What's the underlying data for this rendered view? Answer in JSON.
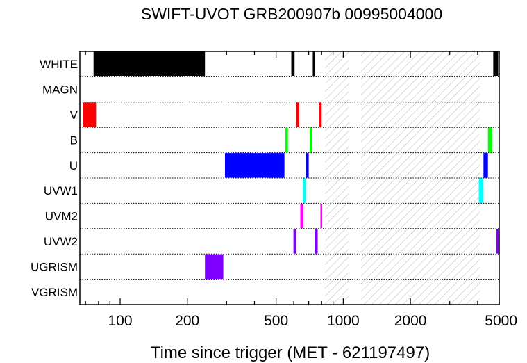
{
  "chart_data": {
    "type": "timeline",
    "title": "SWIFT-UVOT GRB200907b 00995004000",
    "xlabel": "Time since trigger (MET - 621197497)",
    "xscale": "log",
    "xlim": [
      66,
      5000
    ],
    "xticks": [
      {
        "value": 100,
        "label": "100"
      },
      {
        "value": 200,
        "label": "200"
      },
      {
        "value": 500,
        "label": "500"
      },
      {
        "value": 1000,
        "label": "1000"
      },
      {
        "value": 2000,
        "label": "2000"
      },
      {
        "value": 5000,
        "label": "5000"
      }
    ],
    "rows": [
      "WHITE",
      "MAGN",
      "V",
      "B",
      "U",
      "UVW1",
      "UVM2",
      "UVW2",
      "UGRISM",
      "VGRISM"
    ],
    "hatched_intervals": [
      [
        830,
        1060
      ],
      [
        1200,
        4100
      ]
    ],
    "exposures": [
      {
        "filter": "WHITE",
        "start": 76,
        "end": 240,
        "color": "#000000"
      },
      {
        "filter": "WHITE",
        "start": 585,
        "end": 605,
        "color": "#000000"
      },
      {
        "filter": "WHITE",
        "start": 730,
        "end": 745,
        "color": "#000000"
      },
      {
        "filter": "WHITE",
        "start": 4700,
        "end": 4950,
        "color": "#000000"
      },
      {
        "filter": "V",
        "start": 68,
        "end": 78,
        "color": "#ff0000"
      },
      {
        "filter": "V",
        "start": 615,
        "end": 635,
        "color": "#ff0000"
      },
      {
        "filter": "V",
        "start": 782,
        "end": 800,
        "color": "#ff0000"
      },
      {
        "filter": "B",
        "start": 550,
        "end": 565,
        "color": "#00ff00"
      },
      {
        "filter": "B",
        "start": 708,
        "end": 725,
        "color": "#00ff00"
      },
      {
        "filter": "B",
        "start": 4450,
        "end": 4650,
        "color": "#00ff00"
      },
      {
        "filter": "U",
        "start": 295,
        "end": 545,
        "color": "#0000ff"
      },
      {
        "filter": "U",
        "start": 680,
        "end": 700,
        "color": "#0000ff"
      },
      {
        "filter": "U",
        "start": 4250,
        "end": 4450,
        "color": "#0000ff"
      },
      {
        "filter": "UVW1",
        "start": 660,
        "end": 680,
        "color": "#00ffff"
      },
      {
        "filter": "UVW1",
        "start": 4050,
        "end": 4250,
        "color": "#00ffff"
      },
      {
        "filter": "UVM2",
        "start": 642,
        "end": 662,
        "color": "#ff00ff"
      },
      {
        "filter": "UVM2",
        "start": 790,
        "end": 805,
        "color": "#ff00ff"
      },
      {
        "filter": "UVW2",
        "start": 598,
        "end": 615,
        "color": "#8000ff"
      },
      {
        "filter": "UVW2",
        "start": 748,
        "end": 768,
        "color": "#8000ff"
      },
      {
        "filter": "UVW2",
        "start": 4850,
        "end": 5000,
        "color": "#8000ff"
      },
      {
        "filter": "UGRISM",
        "start": 240,
        "end": 290,
        "color": "#8000ff"
      }
    ]
  }
}
